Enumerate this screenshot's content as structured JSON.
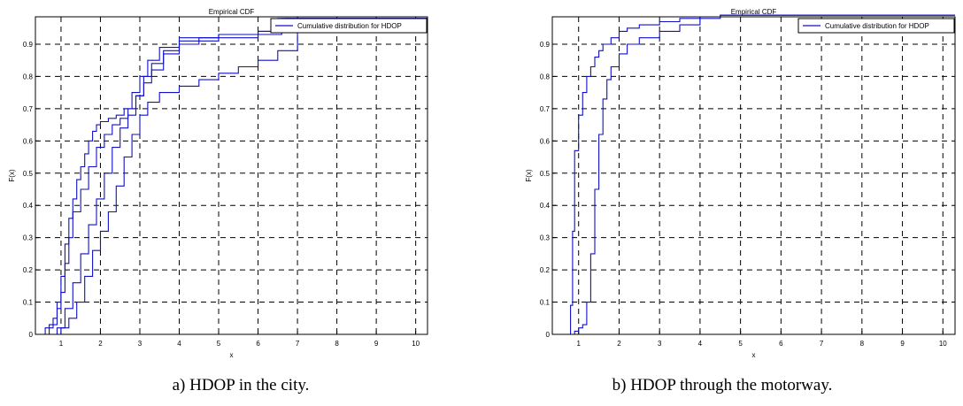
{
  "chart_data": [
    {
      "type": "line",
      "title": "Empirical CDF",
      "xlabel": "x",
      "ylabel": "F(x)",
      "xlim": [
        0.35,
        10.3
      ],
      "ylim": [
        0,
        0.985
      ],
      "xticks": [
        1,
        2,
        3,
        4,
        5,
        6,
        7,
        8,
        9,
        10
      ],
      "yticks": [
        0,
        0.1,
        0.2,
        0.3,
        0.4,
        0.5,
        0.6,
        0.7,
        0.8,
        0.9
      ],
      "grid": true,
      "legend_position": "top-right",
      "legend": [
        "Cumulative distribution for HDOP"
      ],
      "step": true,
      "series_color": "#1010c8",
      "series": [
        {
          "x": [
            0.35,
            0.6,
            0.8,
            0.9,
            1.0,
            1.1,
            1.2,
            1.3,
            1.4,
            1.5,
            1.6,
            1.7,
            1.8,
            1.9,
            2.0,
            2.2,
            2.4,
            2.6,
            2.8,
            3.0,
            3.2,
            3.5,
            4.0,
            5.0,
            6.0,
            6.5,
            10.3
          ],
          "y": [
            0,
            0.02,
            0.05,
            0.1,
            0.18,
            0.28,
            0.36,
            0.42,
            0.48,
            0.52,
            0.56,
            0.6,
            0.63,
            0.65,
            0.66,
            0.67,
            0.68,
            0.7,
            0.75,
            0.8,
            0.85,
            0.89,
            0.92,
            0.93,
            0.94,
            0.98,
            0.98
          ]
        },
        {
          "x": [
            0.35,
            0.7,
            0.9,
            1.0,
            1.1,
            1.2,
            1.3,
            1.5,
            1.7,
            1.9,
            2.1,
            2.3,
            2.5,
            2.7,
            2.9,
            3.1,
            3.3,
            3.6,
            4.0,
            4.5,
            5.0,
            6.0,
            6.7,
            10.3
          ],
          "y": [
            0,
            0.03,
            0.08,
            0.13,
            0.22,
            0.3,
            0.38,
            0.45,
            0.52,
            0.58,
            0.62,
            0.65,
            0.67,
            0.7,
            0.74,
            0.78,
            0.82,
            0.87,
            0.91,
            0.92,
            0.93,
            0.94,
            0.98,
            0.98
          ]
        },
        {
          "x": [
            0.35,
            0.9,
            1.1,
            1.3,
            1.5,
            1.7,
            1.9,
            2.1,
            2.3,
            2.5,
            2.7,
            2.9,
            3.1,
            3.3,
            3.6,
            4.0,
            4.5,
            5.0,
            6.0,
            6.6,
            10.3
          ],
          "y": [
            0,
            0.02,
            0.08,
            0.16,
            0.25,
            0.34,
            0.42,
            0.5,
            0.58,
            0.64,
            0.68,
            0.74,
            0.8,
            0.84,
            0.88,
            0.9,
            0.91,
            0.92,
            0.93,
            0.98,
            0.98
          ]
        },
        {
          "x": [
            0.35,
            1.0,
            1.2,
            1.4,
            1.6,
            1.8,
            2.0,
            2.2,
            2.4,
            2.6,
            2.8,
            3.0,
            3.2,
            3.5,
            4.0,
            4.5,
            5.0,
            5.5,
            6.0,
            6.5,
            7.0,
            10.3
          ],
          "y": [
            0,
            0.02,
            0.05,
            0.1,
            0.18,
            0.26,
            0.32,
            0.38,
            0.46,
            0.55,
            0.62,
            0.68,
            0.72,
            0.75,
            0.77,
            0.79,
            0.81,
            0.83,
            0.85,
            0.88,
            0.985,
            0.985
          ]
        }
      ]
    },
    {
      "type": "line",
      "title": "Empirical CDF",
      "xlabel": "x",
      "ylabel": "F(x)",
      "xlim": [
        0.35,
        10.3
      ],
      "ylim": [
        0,
        0.985
      ],
      "xticks": [
        1,
        2,
        3,
        4,
        5,
        6,
        7,
        8,
        9,
        10
      ],
      "yticks": [
        0,
        0.1,
        0.2,
        0.3,
        0.4,
        0.5,
        0.6,
        0.7,
        0.8,
        0.9
      ],
      "grid": true,
      "legend_position": "top-right",
      "legend": [
        "Cumulative distribution for HDOP"
      ],
      "step": true,
      "series_color": "#1010c8",
      "series": [
        {
          "x": [
            0.35,
            0.8,
            0.85,
            0.9,
            1.0,
            1.1,
            1.2,
            1.3,
            1.4,
            1.5,
            1.6,
            1.8,
            2.0,
            2.2,
            2.5,
            3.0,
            3.5,
            4.0,
            4.5,
            5.0,
            10.3
          ],
          "y": [
            0,
            0.09,
            0.32,
            0.57,
            0.68,
            0.75,
            0.8,
            0.83,
            0.86,
            0.88,
            0.9,
            0.92,
            0.94,
            0.95,
            0.96,
            0.97,
            0.98,
            0.985,
            0.99,
            0.99,
            0.99
          ]
        },
        {
          "x": [
            0.35,
            0.9,
            1.0,
            1.1,
            1.2,
            1.3,
            1.4,
            1.5,
            1.6,
            1.7,
            1.8,
            2.0,
            2.2,
            2.5,
            3.0,
            3.5,
            4.0,
            4.5,
            5.0,
            10.3
          ],
          "y": [
            0,
            0.01,
            0.02,
            0.03,
            0.1,
            0.25,
            0.45,
            0.62,
            0.73,
            0.79,
            0.83,
            0.87,
            0.9,
            0.92,
            0.94,
            0.96,
            0.98,
            0.99,
            0.99,
            0.99
          ]
        }
      ]
    }
  ],
  "captions": [
    "a) HDOP in the city.",
    "b) HDOP through the motorway."
  ]
}
